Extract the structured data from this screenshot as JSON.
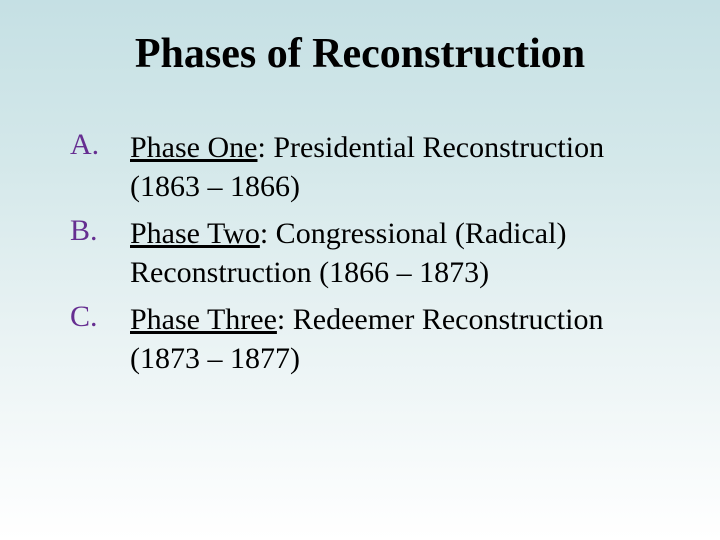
{
  "slide": {
    "title": "Phases of Reconstruction",
    "title_fontsize": 42,
    "title_color": "#000000",
    "marker_color": "#662e91",
    "body_color": "#000000",
    "body_fontsize": 30,
    "background_gradient": [
      "#c5e0e4",
      "#d4e8ea",
      "#e8f2f3",
      "#ffffff"
    ],
    "items": [
      {
        "marker": "A.",
        "underlined": "Phase One",
        "rest": ": Presidential Reconstruction (1863 – 1866)"
      },
      {
        "marker": "B.",
        "underlined": "Phase Two",
        "rest": ": Congressional (Radical) Reconstruction (1866 – 1873)"
      },
      {
        "marker": "C.",
        "underlined": "Phase Three",
        "rest": ": Redeemer Reconstruction (1873 – 1877)"
      }
    ]
  }
}
